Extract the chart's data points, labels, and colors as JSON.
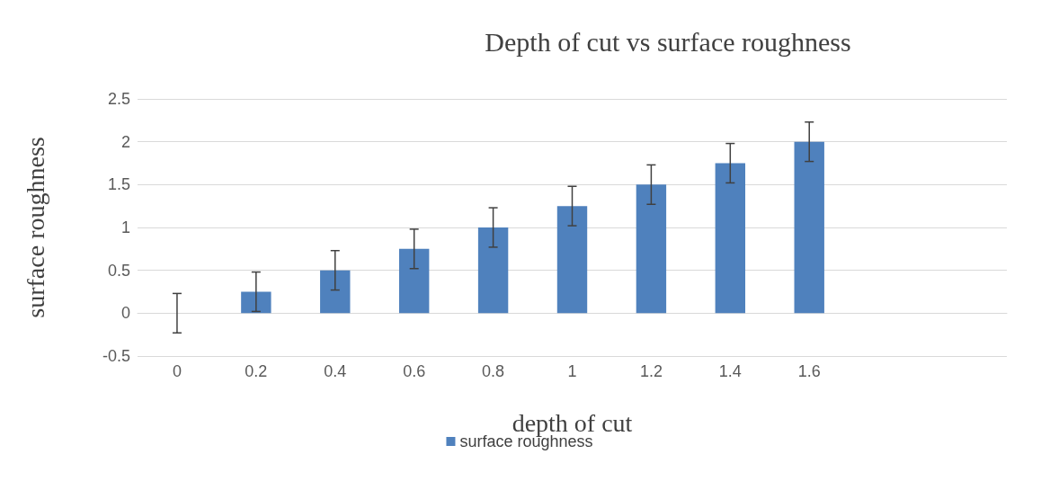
{
  "chart_data": {
    "type": "bar",
    "title": "Depth of cut vs surface roughness",
    "xlabel": "depth of cut",
    "ylabel": "surface roughness",
    "categories": [
      "0",
      "0.2",
      "0.4",
      "0.6",
      "0.8",
      "1",
      "1.2",
      "1.4",
      "1.6",
      null,
      null
    ],
    "series": [
      {
        "name": "surface roughness",
        "color": "#4f81bd",
        "values": [
          0,
          0.25,
          0.5,
          0.75,
          1,
          1.25,
          1.5,
          1.75,
          2,
          null,
          null
        ],
        "errors": [
          0.23,
          0.23,
          0.23,
          0.23,
          0.23,
          0.23,
          0.23,
          0.23,
          0.23,
          null,
          null
        ]
      }
    ],
    "ylim": [
      -0.5,
      2.5
    ],
    "yticks": [
      -0.5,
      0,
      0.5,
      1,
      1.5,
      2,
      2.5
    ],
    "grid": "y",
    "legend": "bottom"
  }
}
